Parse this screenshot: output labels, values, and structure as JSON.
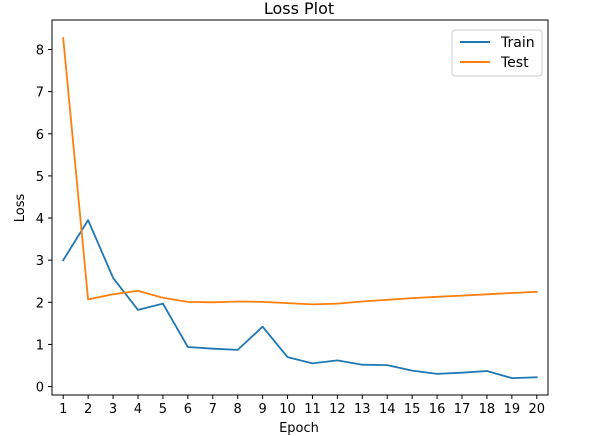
{
  "chart_data": {
    "type": "line",
    "title": "Loss Plot",
    "xlabel": "Epoch",
    "ylabel": "Loss",
    "x": [
      1,
      2,
      3,
      4,
      5,
      6,
      7,
      8,
      9,
      10,
      11,
      12,
      13,
      14,
      15,
      16,
      17,
      18,
      19,
      20
    ],
    "xlim": [
      0.55,
      20.45
    ],
    "ylim": [
      -0.2,
      8.7
    ],
    "yticks": [
      0,
      1,
      2,
      3,
      4,
      5,
      6,
      7,
      8
    ],
    "grid": false,
    "legend_position": "top-right",
    "series": [
      {
        "name": "Train",
        "color": "#1f77b4",
        "values": [
          3.0,
          3.95,
          2.58,
          1.82,
          1.97,
          0.94,
          0.9,
          0.87,
          1.42,
          0.7,
          0.55,
          0.62,
          0.52,
          0.51,
          0.38,
          0.3,
          0.33,
          0.37,
          0.2,
          0.22
        ]
      },
      {
        "name": "Test",
        "color": "#ff7f0e",
        "values": [
          8.27,
          2.07,
          2.19,
          2.27,
          2.11,
          2.01,
          2.0,
          2.02,
          2.01,
          1.98,
          1.95,
          1.97,
          2.02,
          2.06,
          2.1,
          2.13,
          2.16,
          2.19,
          2.22,
          2.25
        ]
      }
    ]
  }
}
